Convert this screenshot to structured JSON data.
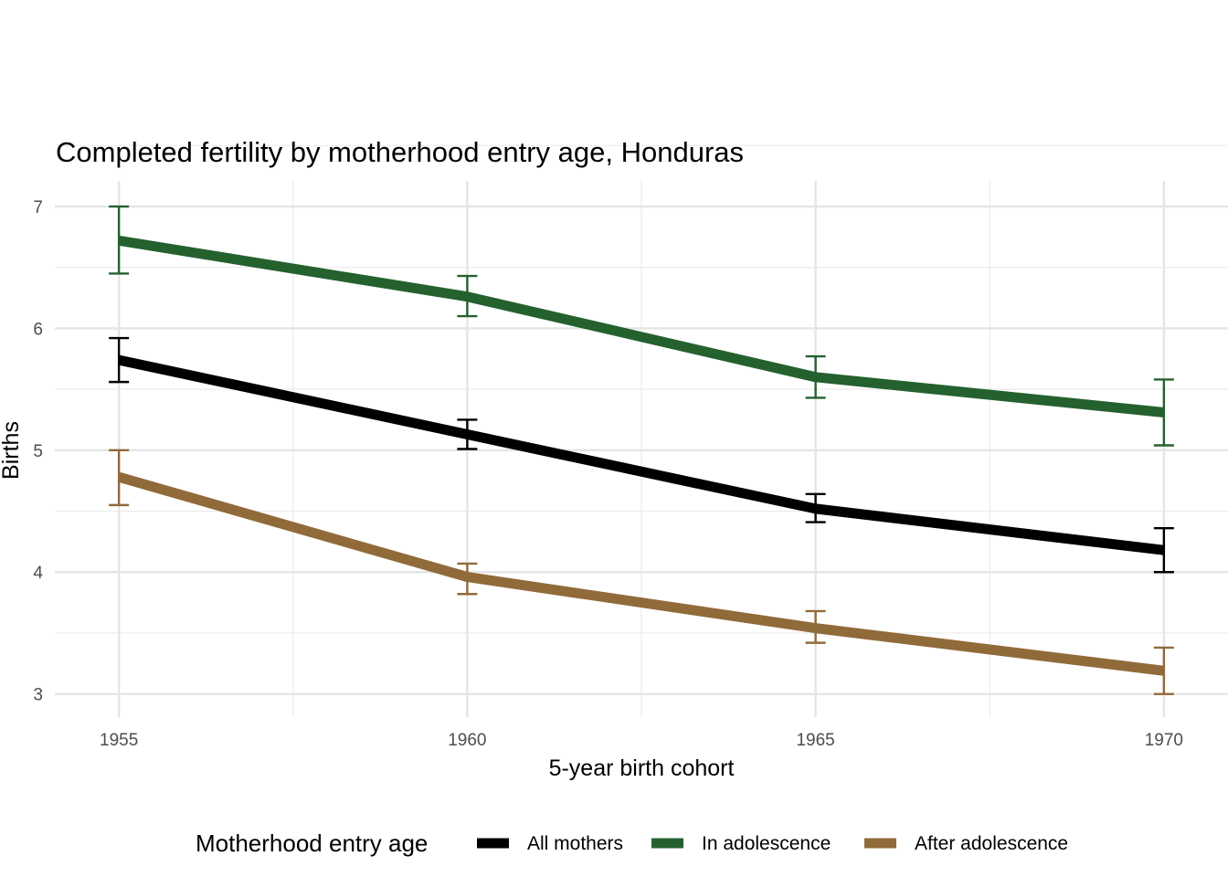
{
  "chart_data": {
    "type": "line",
    "title": "Completed fertility by motherhood entry age,  Honduras",
    "xlabel": "5-year birth cohort",
    "ylabel": "Births",
    "x": [
      1955,
      1960,
      1965,
      1970
    ],
    "x_ticks": [
      "1955",
      "1960",
      "1965",
      "1970"
    ],
    "y_ticks": [
      "3",
      "4",
      "5",
      "6",
      "7"
    ],
    "xlim": [
      1954.08,
      1970.92
    ],
    "ylim": [
      2.81,
      7.21
    ],
    "grid": true,
    "legend": {
      "title": "Motherhood entry age",
      "position": "bottom"
    },
    "series": [
      {
        "name": "All mothers",
        "color": "#000000",
        "values": [
          5.74,
          5.13,
          4.52,
          4.18
        ],
        "lower": [
          5.56,
          5.01,
          4.41,
          4.0
        ],
        "upper": [
          5.92,
          5.25,
          4.64,
          4.36
        ]
      },
      {
        "name": "In adolescence",
        "color": "#24612f",
        "values": [
          6.72,
          6.26,
          5.6,
          5.31
        ],
        "lower": [
          6.45,
          6.1,
          5.43,
          5.04
        ],
        "upper": [
          7.0,
          6.43,
          5.77,
          5.58
        ]
      },
      {
        "name": "After adolescence",
        "color": "#916a3a",
        "values": [
          4.78,
          3.96,
          3.54,
          3.19
        ],
        "lower": [
          4.55,
          3.82,
          3.42,
          3.0
        ],
        "upper": [
          5.0,
          4.07,
          3.68,
          3.38
        ]
      }
    ]
  }
}
